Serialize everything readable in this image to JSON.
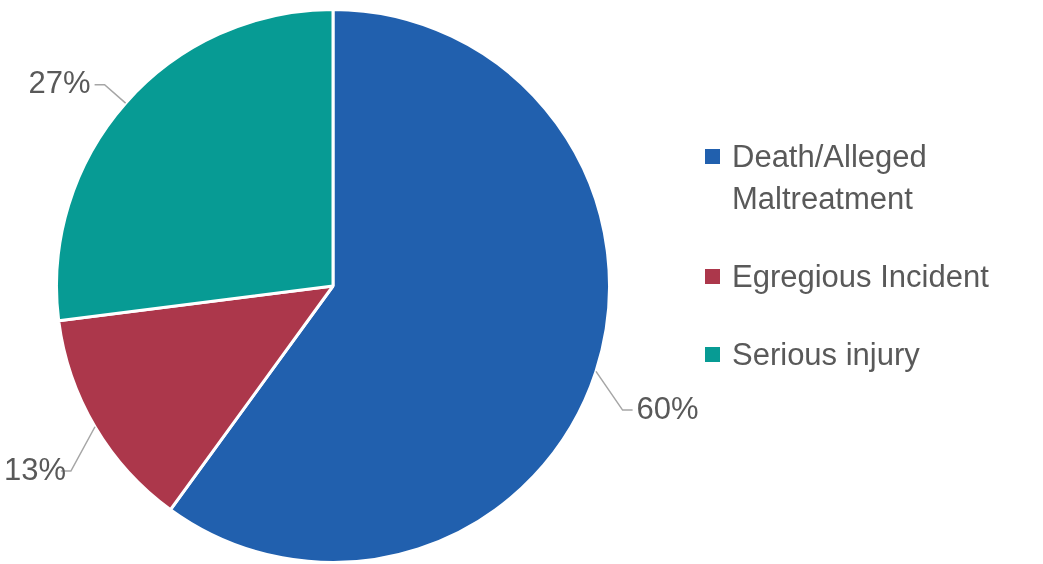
{
  "chart_data": {
    "type": "pie",
    "categories": [
      "Death/Alleged Maltreatment",
      "Egregious Incident",
      "Serious injury"
    ],
    "values": [
      60,
      13,
      27
    ],
    "colors": [
      "#2160ae",
      "#ac374b",
      "#079b94"
    ],
    "value_labels": [
      "60%",
      "13%",
      "27%"
    ],
    "legend": "right"
  }
}
